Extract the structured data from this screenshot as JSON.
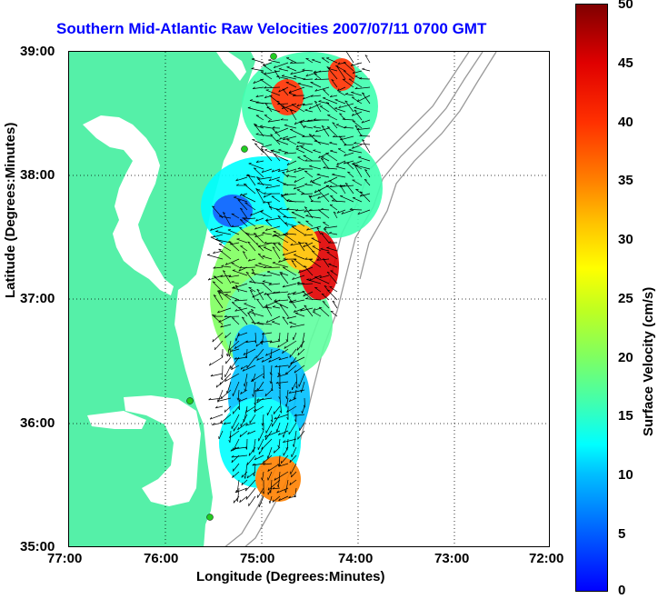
{
  "title": "Southern Mid-Atlantic Raw Velocities 2007/07/11 0700 GMT",
  "axes": {
    "xlabel": "Longitude (Degrees:Minutes)",
    "ylabel": "Latitude (Degrees:Minutes)",
    "x_ticks": [
      "77:00",
      "76:00",
      "75:00",
      "74:00",
      "73:00",
      "72:00"
    ],
    "y_ticks": [
      "39:00",
      "38:00",
      "37:00",
      "36:00",
      "35:00"
    ],
    "xlim": [
      -77,
      -72
    ],
    "ylim": [
      35,
      39
    ],
    "grid": true
  },
  "colorbar": {
    "label": "Surface Velocity (cm/s)",
    "ticks": [
      "50",
      "45",
      "40",
      "35",
      "30",
      "25",
      "20",
      "15",
      "10",
      "5",
      "0"
    ],
    "range": [
      0,
      50
    ],
    "colors": [
      "#0000ff",
      "#00ffff",
      "#ffff00",
      "#ff8000",
      "#ff0000",
      "#800000"
    ]
  },
  "colors": {
    "land": "#55f0a8",
    "title": "#0000ff",
    "station": "#22cc22",
    "bathymetry": "#999999"
  }
}
